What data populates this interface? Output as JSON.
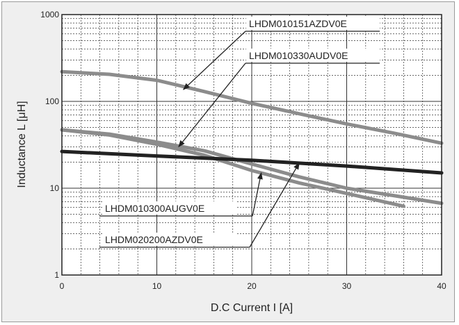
{
  "chart_data": {
    "type": "line",
    "xlabel": "D.C Current I [A]",
    "ylabel": "Inductance L  [μH]",
    "xlim": [
      0,
      40
    ],
    "ylim": [
      1,
      1000
    ],
    "y_scale": "log",
    "grid": true,
    "x_ticks": [
      0,
      10,
      20,
      30,
      40
    ],
    "y_ticks": [
      1,
      10,
      100,
      1000
    ],
    "series": [
      {
        "name": "LHDM010151AZDV0E",
        "color": "#8c8c8c",
        "x": [
          0,
          5,
          10,
          15,
          20,
          25,
          30,
          35,
          40
        ],
        "y": [
          220,
          205,
          175,
          130,
          95,
          72,
          55,
          43,
          33
        ]
      },
      {
        "name": "LHDM010330AUDV0E",
        "color": "#8c8c8c",
        "x": [
          0,
          5,
          10,
          15,
          20,
          25,
          30,
          35,
          40
        ],
        "y": [
          47,
          42,
          34,
          27,
          19,
          13.5,
          10,
          8.2,
          6.7
        ]
      },
      {
        "name": "LHDM010300AUGV0E",
        "color": "#8c8c8c",
        "x": [
          0,
          5,
          10,
          15,
          20,
          25,
          30,
          36
        ],
        "y": [
          47,
          41,
          32,
          24,
          16,
          11.5,
          8.7,
          6.2
        ]
      },
      {
        "name": "LHDM020200AZDV0E",
        "color": "#222222",
        "x": [
          0,
          10,
          20,
          30,
          40
        ],
        "y": [
          26.5,
          23.5,
          21,
          18,
          15
        ]
      }
    ],
    "annotations": [
      {
        "text": "LHDM010151AZDV0E",
        "target_x": 12.8,
        "target_y": 137
      },
      {
        "text": "LHDM010330AUDV0E",
        "target_x": 12.3,
        "target_y": 30
      },
      {
        "text": "LHDM010300AUGV0E",
        "target_x": 21,
        "target_y": 15
      },
      {
        "text": "LHDM020200AZDV0E",
        "target_x": 25,
        "target_y": 19.5
      }
    ]
  }
}
